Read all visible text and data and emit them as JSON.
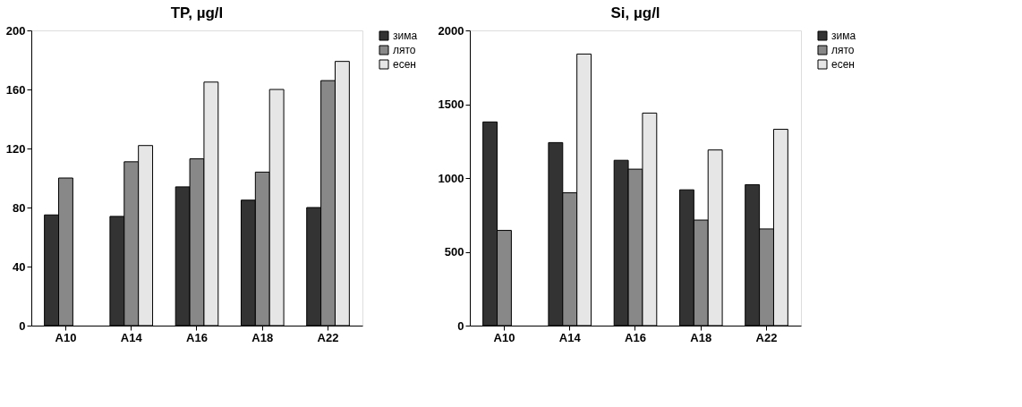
{
  "chart_data": [
    {
      "type": "bar",
      "title": "TP, µg/l",
      "categories": [
        "A10",
        "A14",
        "A16",
        "A18",
        "A22"
      ],
      "ylim": [
        0,
        200
      ],
      "yticks": [
        0,
        40,
        80,
        120,
        160,
        200
      ],
      "grid": false,
      "legend": "right",
      "series": [
        {
          "name": "зима",
          "color": "#333333",
          "values": [
            75,
            74,
            94,
            85,
            80
          ]
        },
        {
          "name": "лято",
          "color": "#888888",
          "values": [
            100,
            111,
            113,
            104,
            166
          ]
        },
        {
          "name": "есен",
          "color": "#e6e6e6",
          "values": [
            null,
            122,
            165,
            160,
            179
          ]
        }
      ]
    },
    {
      "type": "bar",
      "title": "Si, µg/l",
      "categories": [
        "A10",
        "A14",
        "A16",
        "A18",
        "A22"
      ],
      "ylim": [
        0,
        2000
      ],
      "yticks": [
        0,
        500,
        1000,
        1500,
        2000
      ],
      "grid": false,
      "legend": "right",
      "series": [
        {
          "name": "зима",
          "color": "#333333",
          "values": [
            1380,
            1240,
            1120,
            920,
            955
          ]
        },
        {
          "name": "лято",
          "color": "#888888",
          "values": [
            645,
            900,
            1060,
            715,
            655
          ]
        },
        {
          "name": "есен",
          "color": "#e6e6e6",
          "values": [
            null,
            1840,
            1440,
            1190,
            1330
          ]
        }
      ]
    }
  ]
}
